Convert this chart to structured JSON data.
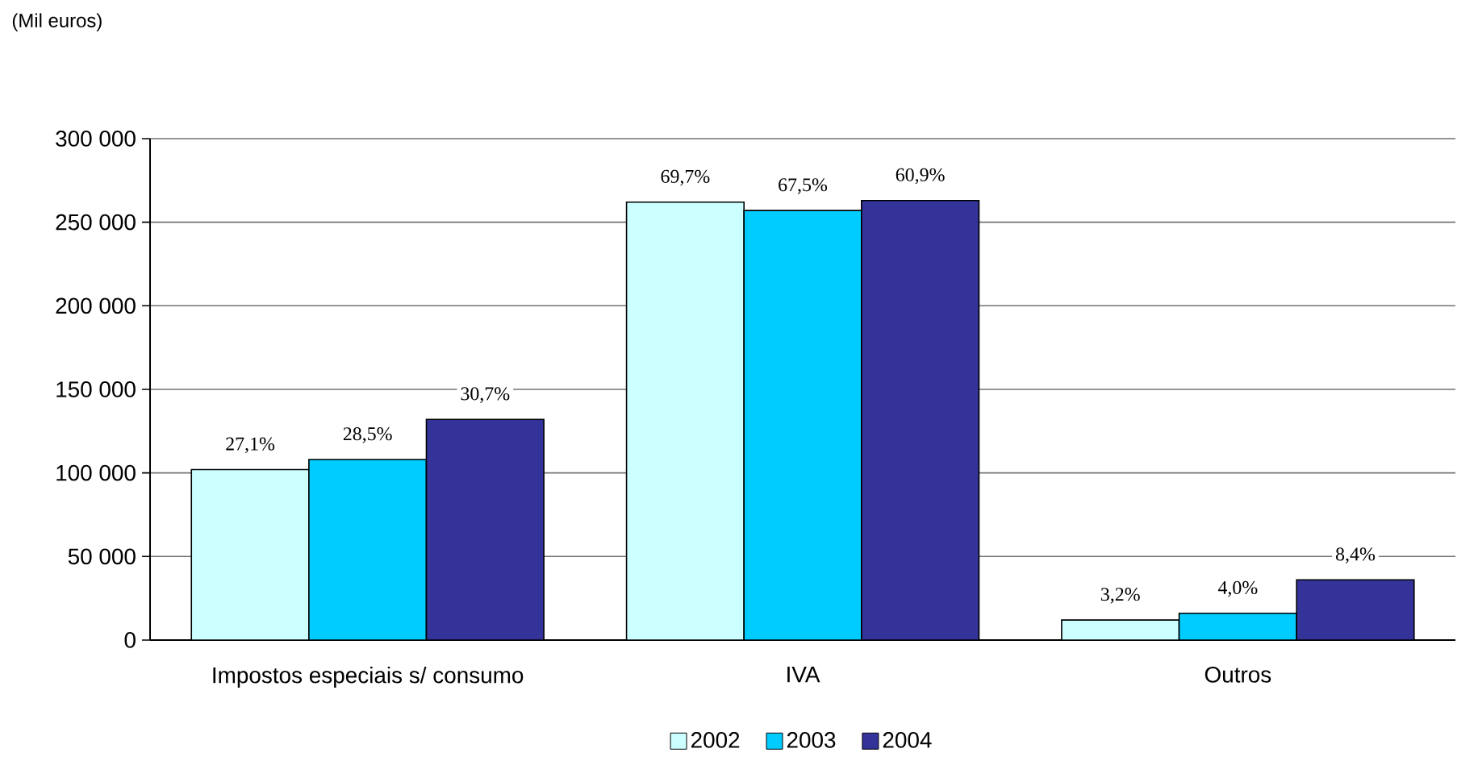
{
  "chart_data": {
    "type": "bar",
    "annotations": [
      "(Mil euros)",
      "27,1%",
      "69,7%",
      "3,2%",
      "28,5%",
      "67,5%",
      "4,0%",
      "30,7%",
      "60,9%",
      "8,4%"
    ],
    "categories": [
      "Impostos especiais s/ consumo",
      "IVA",
      "Outros"
    ],
    "series": [
      {
        "name": "2002",
        "color": "#ccffff",
        "values": [
          102000,
          262000,
          12000
        ]
      },
      {
        "name": "2003",
        "color": "#00ccff",
        "values": [
          108000,
          257000,
          16000
        ]
      },
      {
        "name": "2004",
        "color": "#333399",
        "values": [
          132000,
          263000,
          36000
        ]
      }
    ],
    "ylim": [
      0,
      300000
    ],
    "yticks": [
      0,
      {
        "value": 50000,
        "label": "50 000"
      },
      {
        "value": 100000,
        "label": "100 000"
      },
      {
        "value": 150000,
        "label": "150 000"
      },
      {
        "value": 200000,
        "label": "200 000"
      },
      {
        "value": 250000,
        "label": "250 000"
      },
      {
        "value": 300000,
        "label": "300 000"
      }
    ],
    "grid": "y",
    "legend": "bottom"
  }
}
